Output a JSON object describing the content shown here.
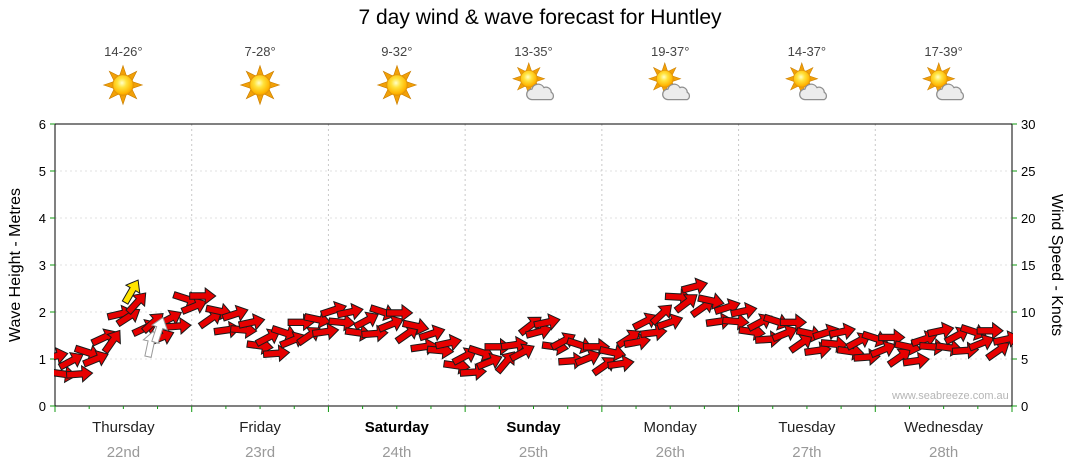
{
  "title": "7 day wind & wave forecast for Huntley",
  "watermark": "www.seabreeze.com.au",
  "left_axis": {
    "label": "Wave Height - Metres",
    "ticks": [
      0,
      1,
      2,
      3,
      4,
      5,
      6
    ],
    "max": 6
  },
  "right_axis": {
    "label": "Wind Speed - Knots",
    "ticks": [
      0,
      5,
      10,
      15,
      20,
      25,
      30
    ],
    "max": 30
  },
  "days": [
    {
      "name": "Thursday",
      "date": "22nd",
      "temp": "14-26°",
      "icon": "sunny",
      "bold": false
    },
    {
      "name": "Friday",
      "date": "23rd",
      "temp": "7-28°",
      "icon": "sunny",
      "bold": false
    },
    {
      "name": "Saturday",
      "date": "24th",
      "temp": "9-32°",
      "icon": "sunny",
      "bold": true
    },
    {
      "name": "Sunday",
      "date": "25th",
      "temp": "13-35°",
      "icon": "partly-cloudy",
      "bold": true
    },
    {
      "name": "Monday",
      "date": "26th",
      "temp": "19-37°",
      "icon": "partly-cloudy",
      "bold": false
    },
    {
      "name": "Tuesday",
      "date": "27th",
      "temp": "14-37°",
      "icon": "partly-cloudy",
      "bold": false
    },
    {
      "name": "Wednesday",
      "date": "28th",
      "temp": "17-39°",
      "icon": "partly-cloudy",
      "bold": false
    }
  ],
  "chart_data": {
    "type": "wind-arrows",
    "x_axis": {
      "unit": "days",
      "range": [
        0,
        7
      ],
      "categories": [
        "Thursday",
        "Friday",
        "Saturday",
        "Sunday",
        "Monday",
        "Tuesday",
        "Wednesday"
      ]
    },
    "wave_axis": {
      "label": "Wave Height - Metres",
      "range": [
        0,
        6
      ]
    },
    "wind_axis": {
      "label": "Wind Speed - Knots",
      "range": [
        0,
        30
      ]
    },
    "grid": true,
    "colors": {
      "arrow": "#e60000",
      "arrow_outline": "#1a1a1a",
      "highlight": "#ffe400",
      "tick": "#119911",
      "grid_v": "#c8c8c8",
      "grid_h": "#e2e2e2"
    },
    "arrow_color": "#e60000",
    "arrows": [
      [
        0.0,
        5.3,
        12
      ],
      [
        0.06,
        3.4,
        -8
      ],
      [
        0.12,
        4.8,
        28
      ],
      [
        0.18,
        3.4,
        4
      ],
      [
        0.24,
        5.7,
        -18
      ],
      [
        0.3,
        5.0,
        22
      ],
      [
        0.36,
        7.3,
        25
      ],
      [
        0.42,
        6.9,
        55
      ],
      [
        0.48,
        9.8,
        13
      ],
      [
        0.54,
        9.5,
        33
      ],
      [
        0.6,
        11.0,
        48
      ],
      [
        0.66,
        8.3,
        25
      ],
      [
        0.72,
        8.9,
        42
      ],
      [
        0.78,
        7.3,
        22
      ],
      [
        0.84,
        9.3,
        28
      ],
      [
        0.9,
        8.5,
        4
      ],
      [
        0.96,
        11.4,
        -18
      ],
      [
        1.02,
        10.6,
        22
      ],
      [
        1.08,
        11.7,
        0
      ],
      [
        1.14,
        9.3,
        35
      ],
      [
        1.2,
        10.1,
        -12
      ],
      [
        1.26,
        8.1,
        8
      ],
      [
        1.32,
        9.8,
        18
      ],
      [
        1.38,
        8.1,
        -5
      ],
      [
        1.44,
        8.9,
        12
      ],
      [
        1.5,
        6.4,
        -8
      ],
      [
        1.56,
        7.3,
        28
      ],
      [
        1.62,
        5.6,
        4
      ],
      [
        1.68,
        7.8,
        -18
      ],
      [
        1.74,
        7.0,
        22
      ],
      [
        1.8,
        8.9,
        0
      ],
      [
        1.86,
        7.5,
        35
      ],
      [
        1.92,
        9.2,
        -12
      ],
      [
        1.98,
        7.9,
        8
      ],
      [
        2.04,
        10.2,
        18
      ],
      [
        2.1,
        8.9,
        -5
      ],
      [
        2.16,
        10.0,
        12
      ],
      [
        2.22,
        7.8,
        -8
      ],
      [
        2.28,
        9.1,
        28
      ],
      [
        2.34,
        7.7,
        4
      ],
      [
        2.4,
        10.0,
        -18
      ],
      [
        2.46,
        8.7,
        22
      ],
      [
        2.52,
        9.9,
        0
      ],
      [
        2.58,
        7.7,
        35
      ],
      [
        2.64,
        8.5,
        -12
      ],
      [
        2.7,
        6.3,
        8
      ],
      [
        2.76,
        7.7,
        18
      ],
      [
        2.82,
        5.9,
        -5
      ],
      [
        2.88,
        6.7,
        12
      ],
      [
        2.94,
        4.3,
        -8
      ],
      [
        3.0,
        5.3,
        28
      ],
      [
        3.06,
        3.6,
        4
      ],
      [
        3.12,
        5.7,
        -18
      ],
      [
        3.18,
        4.7,
        22
      ],
      [
        3.24,
        6.3,
        0
      ],
      [
        3.3,
        4.7,
        50
      ],
      [
        3.36,
        6.5,
        8
      ],
      [
        3.42,
        5.7,
        28
      ],
      [
        3.48,
        8.6,
        38
      ],
      [
        3.54,
        7.9,
        15
      ],
      [
        3.6,
        8.9,
        12
      ],
      [
        3.66,
        6.3,
        -8
      ],
      [
        3.72,
        6.9,
        28
      ],
      [
        3.78,
        4.8,
        4
      ],
      [
        3.84,
        6.5,
        -18
      ],
      [
        3.9,
        5.1,
        22
      ],
      [
        3.96,
        6.3,
        0
      ],
      [
        4.02,
        4.3,
        35
      ],
      [
        4.08,
        5.7,
        -12
      ],
      [
        4.14,
        4.5,
        8
      ],
      [
        4.2,
        7.2,
        33
      ],
      [
        4.26,
        6.8,
        10
      ],
      [
        4.32,
        9.0,
        27
      ],
      [
        4.38,
        7.8,
        7
      ],
      [
        4.44,
        9.8,
        43
      ],
      [
        4.5,
        8.9,
        19
      ],
      [
        4.56,
        11.6,
        -3
      ],
      [
        4.62,
        11.0,
        37
      ],
      [
        4.68,
        12.7,
        15
      ],
      [
        4.74,
        10.5,
        35
      ],
      [
        4.8,
        11.2,
        -12
      ],
      [
        4.86,
        9.0,
        8
      ],
      [
        4.92,
        10.5,
        18
      ],
      [
        4.98,
        9.0,
        -5
      ],
      [
        5.04,
        10.1,
        12
      ],
      [
        5.1,
        7.9,
        -8
      ],
      [
        5.16,
        8.9,
        28
      ],
      [
        5.22,
        7.1,
        4
      ],
      [
        5.28,
        9.0,
        -18
      ],
      [
        5.34,
        7.7,
        22
      ],
      [
        5.4,
        8.9,
        0
      ],
      [
        5.46,
        6.7,
        35
      ],
      [
        5.52,
        7.7,
        -12
      ],
      [
        5.58,
        5.9,
        8
      ],
      [
        5.64,
        7.8,
        18
      ],
      [
        5.7,
        6.6,
        -5
      ],
      [
        5.76,
        7.9,
        12
      ],
      [
        5.82,
        5.8,
        -8
      ],
      [
        5.88,
        6.9,
        28
      ],
      [
        5.94,
        5.2,
        4
      ],
      [
        6.0,
        7.2,
        -18
      ],
      [
        6.06,
        6.0,
        22
      ],
      [
        6.12,
        7.3,
        0
      ],
      [
        6.18,
        5.2,
        35
      ],
      [
        6.24,
        6.3,
        -12
      ],
      [
        6.3,
        4.8,
        8
      ],
      [
        6.36,
        7.1,
        18
      ],
      [
        6.42,
        6.3,
        -5
      ],
      [
        6.48,
        8.0,
        12
      ],
      [
        6.54,
        6.2,
        -8
      ],
      [
        6.6,
        7.5,
        28
      ],
      [
        6.66,
        5.9,
        4
      ],
      [
        6.72,
        7.9,
        -18
      ],
      [
        6.78,
        6.7,
        22
      ],
      [
        6.84,
        8.0,
        0
      ],
      [
        6.9,
        5.9,
        35
      ],
      [
        6.96,
        7.1,
        12
      ]
    ],
    "special_arrows": [
      {
        "t": 0.56,
        "knots": 12.2,
        "dir": 60,
        "color": "#ffe400",
        "stroke": "#1a1a1a"
      },
      {
        "t": 0.7,
        "knots": 6.6,
        "dir": 78,
        "color": "#ffffff",
        "stroke": "#999999"
      },
      {
        "t": 0.76,
        "knots": 8.1,
        "dir": 72,
        "color": "#ffffff",
        "stroke": "#999999"
      }
    ]
  }
}
